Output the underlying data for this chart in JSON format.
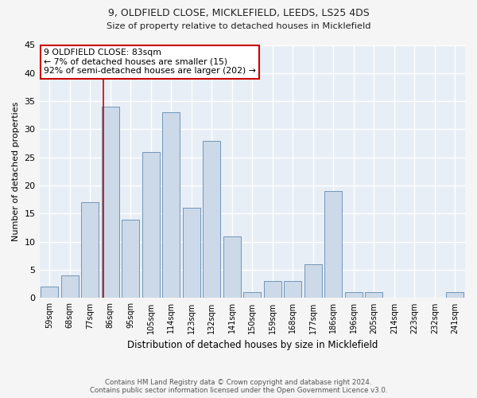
{
  "title1": "9, OLDFIELD CLOSE, MICKLEFIELD, LEEDS, LS25 4DS",
  "title2": "Size of property relative to detached houses in Micklefield",
  "xlabel": "Distribution of detached houses by size in Micklefield",
  "ylabel": "Number of detached properties",
  "categories": [
    "59sqm",
    "68sqm",
    "77sqm",
    "86sqm",
    "95sqm",
    "105sqm",
    "114sqm",
    "123sqm",
    "132sqm",
    "141sqm",
    "150sqm",
    "159sqm",
    "168sqm",
    "177sqm",
    "186sqm",
    "196sqm",
    "205sqm",
    "214sqm",
    "223sqm",
    "232sqm",
    "241sqm"
  ],
  "values": [
    2,
    4,
    17,
    34,
    14,
    26,
    33,
    16,
    28,
    11,
    1,
    3,
    3,
    6,
    19,
    1,
    1,
    0,
    0,
    0,
    1
  ],
  "bar_color": "#ccd9e8",
  "bar_edge_color": "#7096b8",
  "background_color": "#e8eef5",
  "grid_color": "#ffffff",
  "annotation_text_line1": "9 OLDFIELD CLOSE: 83sqm",
  "annotation_text_line2": "← 7% of detached houses are smaller (15)",
  "annotation_text_line3": "92% of semi-detached houses are larger (202) →",
  "annotation_box_color": "#ffffff",
  "annotation_box_edge_color": "#cc0000",
  "vline_color": "#cc0000",
  "footer1": "Contains HM Land Registry data © Crown copyright and database right 2024.",
  "footer2": "Contains public sector information licensed under the Open Government Licence v3.0.",
  "ylim": [
    0,
    45
  ],
  "yticks": [
    0,
    5,
    10,
    15,
    20,
    25,
    30,
    35,
    40,
    45
  ],
  "fig_bg": "#f5f5f5"
}
